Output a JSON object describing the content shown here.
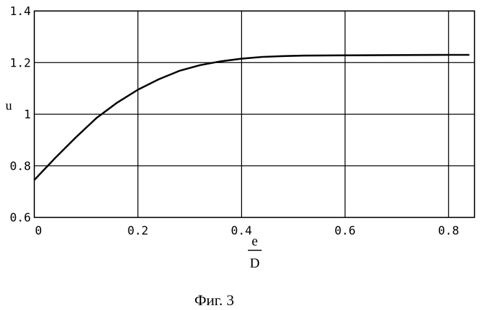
{
  "chart_data": {
    "type": "line",
    "title": "",
    "ylabel": "u",
    "xlabel_numerator": "e",
    "xlabel_denominator": "D",
    "caption": "Фиг. 3",
    "xlim": [
      0,
      0.85
    ],
    "ylim": [
      0.6,
      1.4
    ],
    "grid": true,
    "x_ticks": [
      {
        "value": 0,
        "label": "0"
      },
      {
        "value": 0.2,
        "label": "0.2"
      },
      {
        "value": 0.4,
        "label": "0.4"
      },
      {
        "value": 0.6,
        "label": "0.6"
      },
      {
        "value": 0.8,
        "label": "0.8"
      }
    ],
    "y_ticks": [
      {
        "value": 0.6,
        "label": "0.6"
      },
      {
        "value": 0.8,
        "label": "0.8"
      },
      {
        "value": 1.0,
        "label": "1"
      },
      {
        "value": 1.2,
        "label": "1.2"
      },
      {
        "value": 1.4,
        "label": "1.4"
      }
    ],
    "series": [
      {
        "color": "#000000",
        "x": [
          0,
          0.04,
          0.08,
          0.12,
          0.16,
          0.2,
          0.24,
          0.28,
          0.32,
          0.36,
          0.4,
          0.44,
          0.48,
          0.52,
          0.6,
          0.7,
          0.8,
          0.84
        ],
        "y": [
          0.745,
          0.83,
          0.91,
          0.985,
          1.045,
          1.095,
          1.135,
          1.168,
          1.19,
          1.205,
          1.215,
          1.222,
          1.225,
          1.227,
          1.228,
          1.229,
          1.23,
          1.23
        ]
      }
    ]
  }
}
